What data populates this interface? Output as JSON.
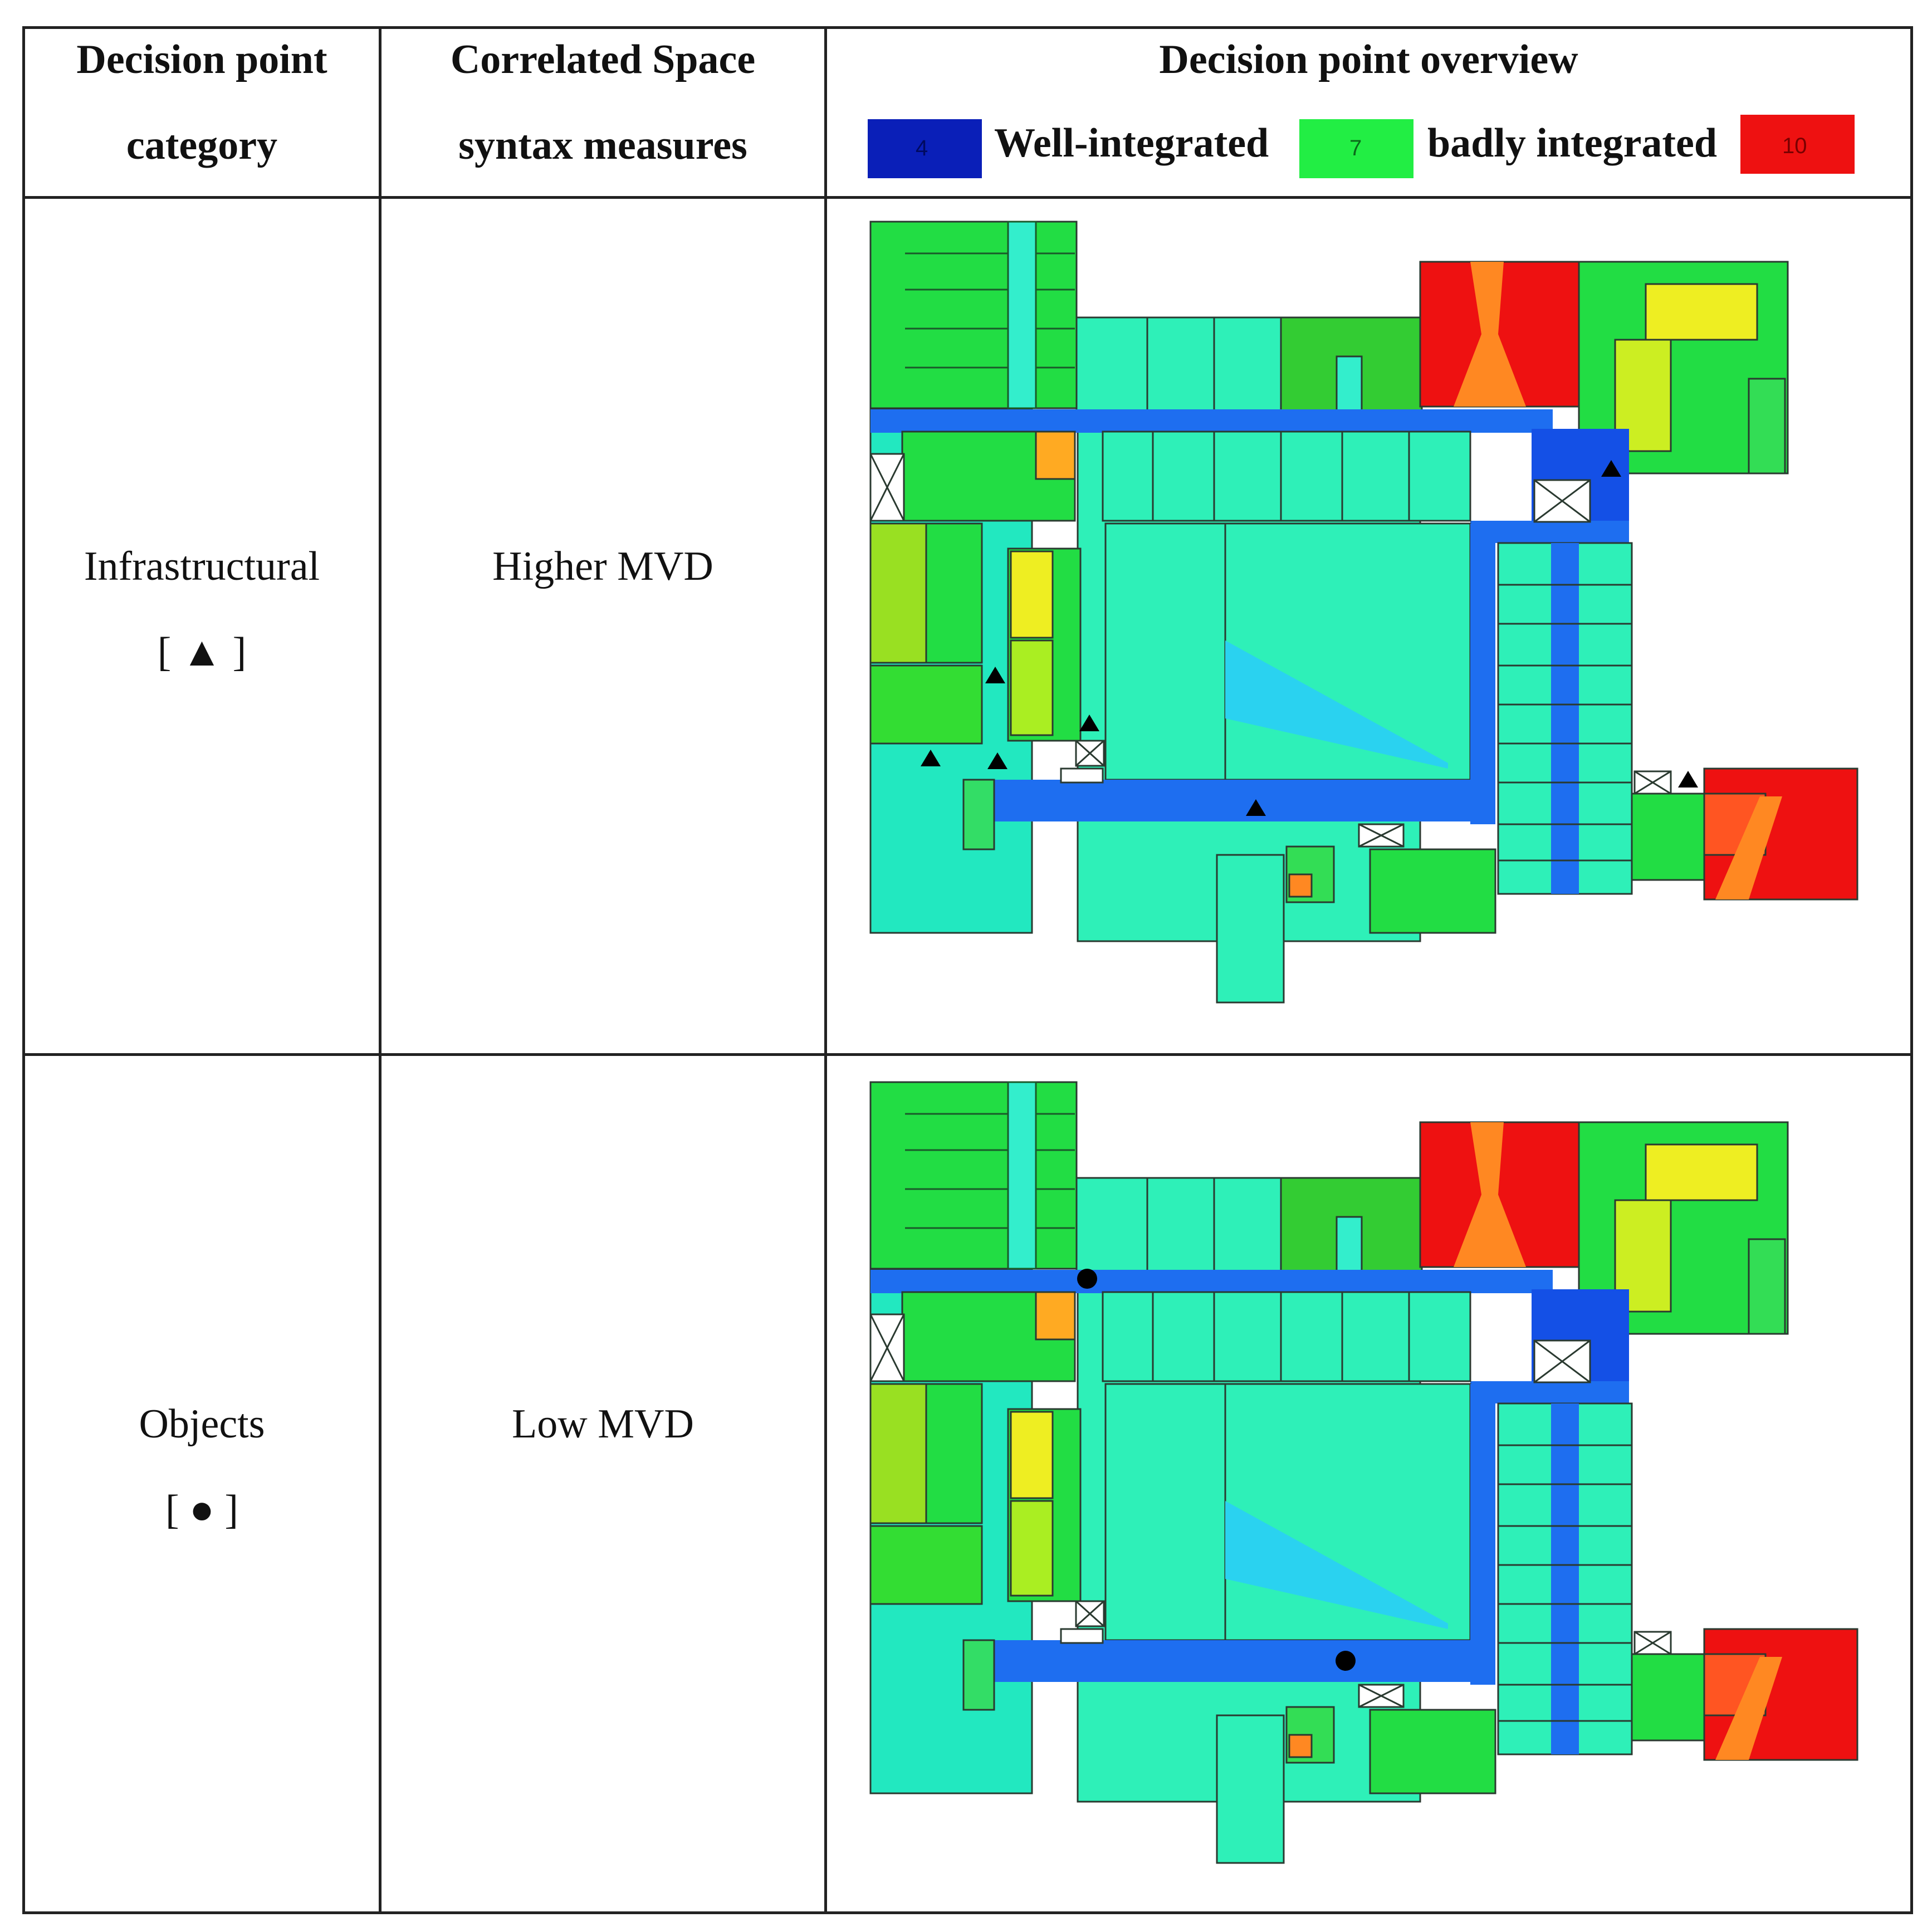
{
  "header": {
    "col1": [
      "Decision point",
      "category"
    ],
    "col2": [
      "Correlated Space",
      "syntax measures"
    ],
    "col3": "Decision point overview",
    "legend": {
      "well_label": "Well-integrated",
      "bad_label": "badly integrated",
      "swatches": [
        {
          "value": "4",
          "color": "#0a1fb8"
        },
        {
          "value": "7",
          "color": "#22ee44"
        },
        {
          "value": "10",
          "color": "#ee1111"
        }
      ]
    }
  },
  "rows": [
    {
      "category": "Infrastructural",
      "symbol": "[ ▲ ]",
      "measure": "Higher MVD"
    },
    {
      "category": "Objects",
      "symbol": "[ ● ]",
      "measure": "Low MVD"
    }
  ]
}
